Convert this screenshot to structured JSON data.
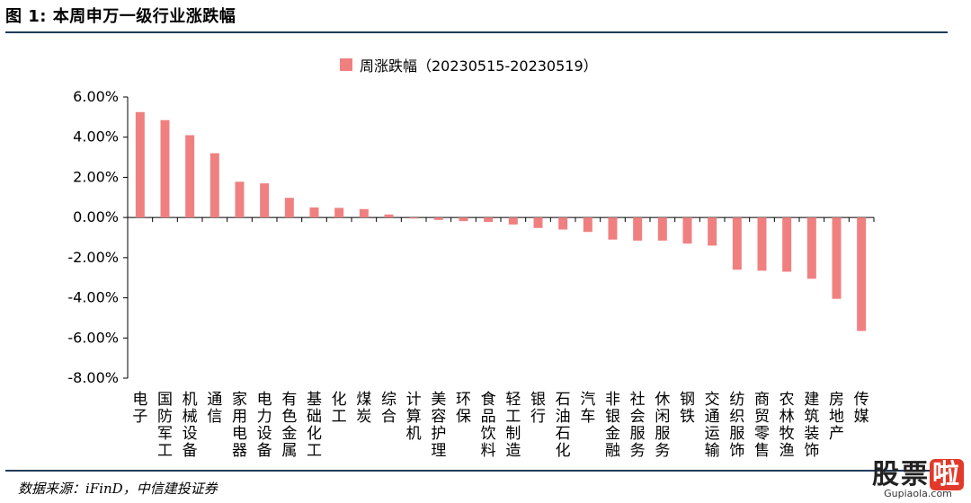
{
  "figure": {
    "title": "图 1: 本周申万一级行业涨跌幅",
    "source": "数据来源：iFinD，中信建投证券"
  },
  "watermark": {
    "main_a": "股票",
    "main_b": "啦",
    "sub": "Gupiaola.com"
  },
  "colors": {
    "bar": "#f08080",
    "rule": "#1f3b5a",
    "axis": "#000000"
  },
  "chart_data": {
    "type": "bar",
    "title": "",
    "legend": [
      "周涨跌幅（20230515-20230519）"
    ],
    "legend_position": "top-center",
    "xlabel": "",
    "ylabel": "",
    "ylim": [
      -8,
      6
    ],
    "yticks": [
      6,
      4,
      2,
      0,
      -2,
      -4,
      -6,
      -8
    ],
    "ytick_labels": [
      "6.00%",
      "4.00%",
      "2.00%",
      "0.00%",
      "-2.00%",
      "-4.00%",
      "-6.00%",
      "-8.00%"
    ],
    "grid": false,
    "categories": [
      "电子",
      "国防军工",
      "机械设备",
      "通信",
      "家用电器",
      "电力设备",
      "有色金属",
      "基础化工",
      "化工",
      "煤炭",
      "综合",
      "计算机",
      "美容护理",
      "环保",
      "食品饮料",
      "轻工制造",
      "银行",
      "石油石化",
      "汽车",
      "非银金融",
      "社会服务",
      "休闲服务",
      "钢铁",
      "交通运输",
      "纺织服饰",
      "商贸零售",
      "农林牧渔",
      "建筑装饰",
      "房地产",
      "传媒"
    ],
    "series": [
      {
        "name": "周涨跌幅（20230515-20230519）",
        "values": [
          5.25,
          4.85,
          4.1,
          3.2,
          1.78,
          1.7,
          0.98,
          0.5,
          0.48,
          0.42,
          0.15,
          -0.05,
          -0.12,
          -0.18,
          -0.22,
          -0.35,
          -0.52,
          -0.6,
          -0.72,
          -1.1,
          -1.15,
          -1.15,
          -1.3,
          -1.4,
          -2.6,
          -2.65,
          -2.7,
          -3.05,
          -4.05,
          -5.65
        ]
      }
    ]
  }
}
